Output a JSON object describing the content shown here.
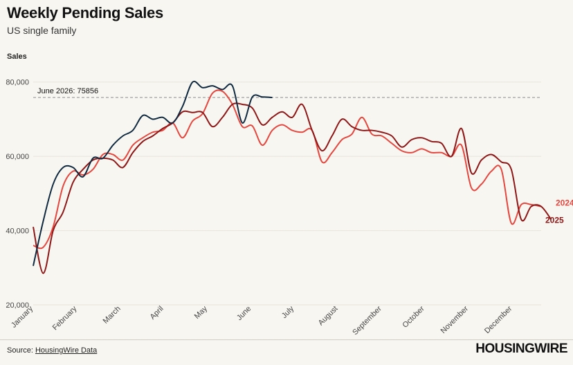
{
  "header": {
    "title": "Weekly Pending Sales",
    "subtitle": "US single family",
    "ylabel": "Sales"
  },
  "footer": {
    "source_prefix": "Source: ",
    "source_link": "HousingWire Data",
    "logo": "HOUSINGWIRE"
  },
  "chart_data": {
    "type": "line",
    "title": "Weekly Pending Sales",
    "subtitle": "US single family",
    "ylabel": "Sales",
    "xlabel": "",
    "ylim": [
      20000,
      82000
    ],
    "yticks": [
      20000,
      40000,
      60000,
      80000
    ],
    "ytick_labels": [
      "20,000",
      "40,000",
      "60,000",
      "80,000"
    ],
    "x_unit": "week of year",
    "xlim": [
      1,
      52
    ],
    "months": [
      "January",
      "February",
      "March",
      "April",
      "May",
      "June",
      "July",
      "August",
      "September",
      "October",
      "November",
      "December"
    ],
    "month_start_weeks": [
      1,
      5.4,
      9.8,
      14.1,
      18.5,
      22.9,
      27.2,
      31.6,
      36,
      40.3,
      44.7,
      49.1
    ],
    "grid": true,
    "reference_line": {
      "label": "June 2026: 75856",
      "value": 75856
    },
    "colors": {
      "2024": "#e5473f",
      "2025": "#8e1616",
      "2026": "#0f2a40"
    },
    "series": [
      {
        "name": "2024",
        "label_shown": true,
        "values": [
          36000,
          35500,
          41000,
          52000,
          56000,
          55000,
          56500,
          60500,
          60500,
          59000,
          63000,
          65000,
          66500,
          67000,
          69000,
          65000,
          69500,
          71500,
          77000,
          77500,
          74000,
          68000,
          68200,
          63000,
          67000,
          68500,
          67000,
          66500,
          67000,
          58500,
          61000,
          64500,
          66000,
          70500,
          66000,
          65500,
          63500,
          61500,
          61000,
          62000,
          61000,
          61000,
          60000,
          63000,
          51500,
          52500,
          56000,
          56500,
          42000,
          47000,
          47000,
          46500
        ]
      },
      {
        "name": "2025",
        "label_shown": true,
        "values": [
          41000,
          28500,
          40000,
          45000,
          53000,
          56500,
          59000,
          59500,
          59000,
          57000,
          61000,
          64000,
          65500,
          67500,
          69000,
          72000,
          71800,
          71800,
          68000,
          70500,
          74000,
          74000,
          73000,
          68500,
          70500,
          72000,
          70500,
          74000,
          67000,
          61500,
          65500,
          70000,
          68000,
          67000,
          67000,
          66500,
          65500,
          62500,
          64500,
          65000,
          64000,
          63500,
          60000,
          67500,
          55500,
          59000,
          60500,
          58500,
          56500,
          43000,
          46500,
          46500,
          43000
        ]
      },
      {
        "name": "2026",
        "label_shown": false,
        "values": [
          30500,
          42500,
          52500,
          57000,
          57000,
          54500,
          59500,
          59500,
          63000,
          65500,
          67000,
          71000,
          70000,
          70500,
          69000,
          73500,
          80000,
          78500,
          79000,
          78000,
          79000,
          69000,
          76000,
          76000,
          75856
        ]
      }
    ],
    "end_labels": [
      "2024",
      "2025"
    ]
  }
}
